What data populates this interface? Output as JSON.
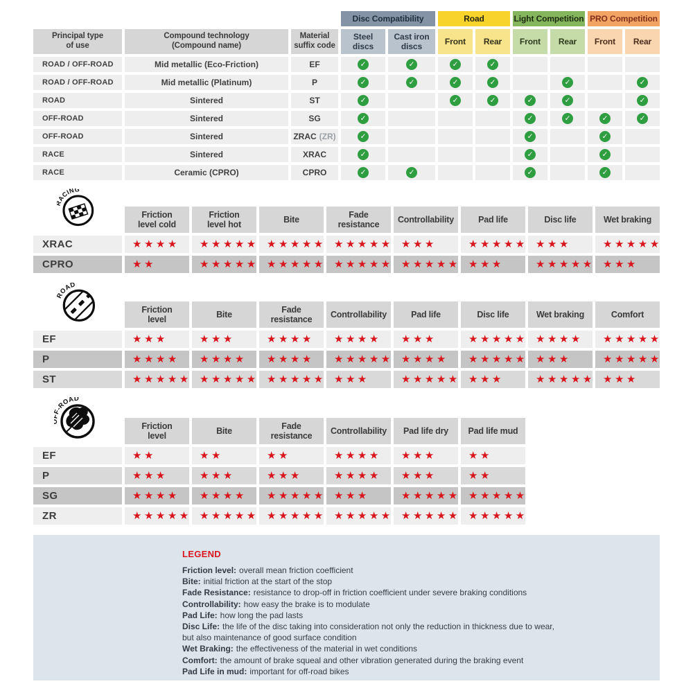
{
  "compat_table": {
    "headers": {
      "principal": "Principal type\nof use",
      "compound": "Compound technology\n(Compound name)",
      "suffix": "Material\nsuffix code"
    },
    "groups": [
      {
        "label": "Disc Compatibility",
        "color": "#8494a6",
        "sub_color": "#b9c3cd",
        "subcols": [
          "Steel\ndiscs",
          "Cast iron\ndiscs"
        ]
      },
      {
        "label": "Road",
        "color": "#f7d32b",
        "sub_color": "#f8e58b",
        "subcols": [
          "Front",
          "Rear"
        ]
      },
      {
        "label": "Light Competition",
        "color": "#85b55c",
        "sub_color": "#c5dca8",
        "subcols": [
          "Front",
          "Rear"
        ]
      },
      {
        "label": "PRO Competition",
        "color": "#f2a465",
        "sub_color": "#f9d5b0",
        "subcols": [
          "Front",
          "Rear"
        ]
      }
    ],
    "rows": [
      {
        "use": "ROAD / OFF-ROAD",
        "compound": "Mid metallic (Eco-Friction)",
        "suffix": "EF",
        "suffix_note": "",
        "checks": [
          1,
          1,
          1,
          1,
          0,
          0,
          0,
          0
        ]
      },
      {
        "use": "ROAD / OFF-ROAD",
        "compound": "Mid metallic (Platinum)",
        "suffix": "P",
        "suffix_note": "",
        "checks": [
          1,
          1,
          1,
          1,
          0,
          1,
          0,
          1
        ]
      },
      {
        "use": "ROAD",
        "compound": "Sintered",
        "suffix": "ST",
        "suffix_note": "",
        "checks": [
          1,
          0,
          1,
          1,
          1,
          1,
          0,
          1
        ]
      },
      {
        "use": "OFF-ROAD",
        "compound": "Sintered",
        "suffix": "SG",
        "suffix_note": "",
        "checks": [
          1,
          0,
          0,
          0,
          1,
          1,
          1,
          1
        ]
      },
      {
        "use": "OFF-ROAD",
        "compound": "Sintered",
        "suffix": "ZRAC",
        "suffix_note": "(ZR)",
        "checks": [
          1,
          0,
          0,
          0,
          1,
          0,
          1,
          0
        ]
      },
      {
        "use": "RACE",
        "compound": "Sintered",
        "suffix": "XRAC",
        "suffix_note": "",
        "checks": [
          1,
          0,
          0,
          0,
          1,
          0,
          1,
          0
        ]
      },
      {
        "use": "RACE",
        "compound": "Ceramic (CPRO)",
        "suffix": "CPRO",
        "suffix_note": "",
        "checks": [
          1,
          1,
          0,
          0,
          1,
          0,
          1,
          0
        ]
      }
    ]
  },
  "rating_tables": [
    {
      "id": "racing",
      "badge": "RACING",
      "columns": [
        "Friction\nlevel cold",
        "Friction\nlevel hot",
        "Bite",
        "Fade\nresistance",
        "Controllability",
        "Pad life",
        "Disc life",
        "Wet braking"
      ],
      "rows": [
        {
          "label": "XRAC",
          "shade": "light",
          "stars": [
            4,
            5,
            5,
            5,
            3,
            5,
            3,
            5
          ]
        },
        {
          "label": "CPRO",
          "shade": "dark",
          "stars": [
            2,
            5,
            5,
            5,
            5,
            3,
            5,
            3
          ]
        }
      ]
    },
    {
      "id": "road",
      "badge": "ROAD",
      "columns": [
        "Friction\nlevel",
        "Bite",
        "Fade\nresistance",
        "Controllability",
        "Pad life",
        "Disc life",
        "Wet braking",
        "Comfort"
      ],
      "rows": [
        {
          "label": "EF",
          "shade": "light",
          "stars": [
            3,
            3,
            4,
            4,
            3,
            5,
            4,
            5
          ]
        },
        {
          "label": "P",
          "shade": "dark",
          "stars": [
            4,
            4,
            4,
            5,
            4,
            5,
            3,
            5
          ]
        },
        {
          "label": "ST",
          "shade": "mid",
          "stars": [
            5,
            5,
            5,
            3,
            5,
            3,
            5,
            3
          ]
        }
      ]
    },
    {
      "id": "offroad",
      "badge": "OFF-ROAD",
      "columns": [
        "Friction\nlevel",
        "Bite",
        "Fade\nresistance",
        "Controllability",
        "Pad life dry",
        "Pad life mud"
      ],
      "rows": [
        {
          "label": "EF",
          "shade": "light",
          "stars": [
            2,
            2,
            2,
            4,
            3,
            2
          ]
        },
        {
          "label": "P",
          "shade": "mid",
          "stars": [
            3,
            3,
            3,
            4,
            3,
            2
          ]
        },
        {
          "label": "SG",
          "shade": "dark",
          "stars": [
            4,
            4,
            5,
            3,
            5,
            5
          ]
        },
        {
          "label": "ZR",
          "shade": "light",
          "stars": [
            5,
            5,
            5,
            5,
            5,
            5
          ]
        }
      ]
    }
  ],
  "legend": {
    "title": "LEGEND",
    "items": [
      {
        "term": "Friction level:",
        "desc": "overall mean friction coefficient"
      },
      {
        "term": "Bite:",
        "desc": "initial friction at the start of the stop"
      },
      {
        "term": "Fade Resistance:",
        "desc": "resistance to drop-off in friction coefficient under severe braking conditions"
      },
      {
        "term": "Controllability:",
        "desc": "how easy the brake is to modulate"
      },
      {
        "term": "Pad Life:",
        "desc": "how long the pad lasts"
      },
      {
        "term": "Disc Life:",
        "desc": "the life of the disc taking into consideration not only the reduction in thickness due to wear,"
      },
      {
        "term": "",
        "desc": "but also maintenance of good surface condition"
      },
      {
        "term": "Wet Braking:",
        "desc": "the effectiveness of the material in wet conditions"
      },
      {
        "term": "Comfort:",
        "desc": "the amount of brake squeal and other vibration generated during the braking event"
      },
      {
        "term": "Pad Life in mud:",
        "desc": "important for off-road bikes"
      }
    ]
  },
  "icons": {
    "check": "✓",
    "star": "★"
  },
  "colors": {
    "star_red": "#d9161e",
    "check_green": "#2f9e41",
    "legend_bg": "#dce5ec",
    "header_gray": "#d6d6d6",
    "row_light": "#eeeeee",
    "row_mid": "#d9d9d9",
    "row_dark": "#c5c5c5"
  }
}
